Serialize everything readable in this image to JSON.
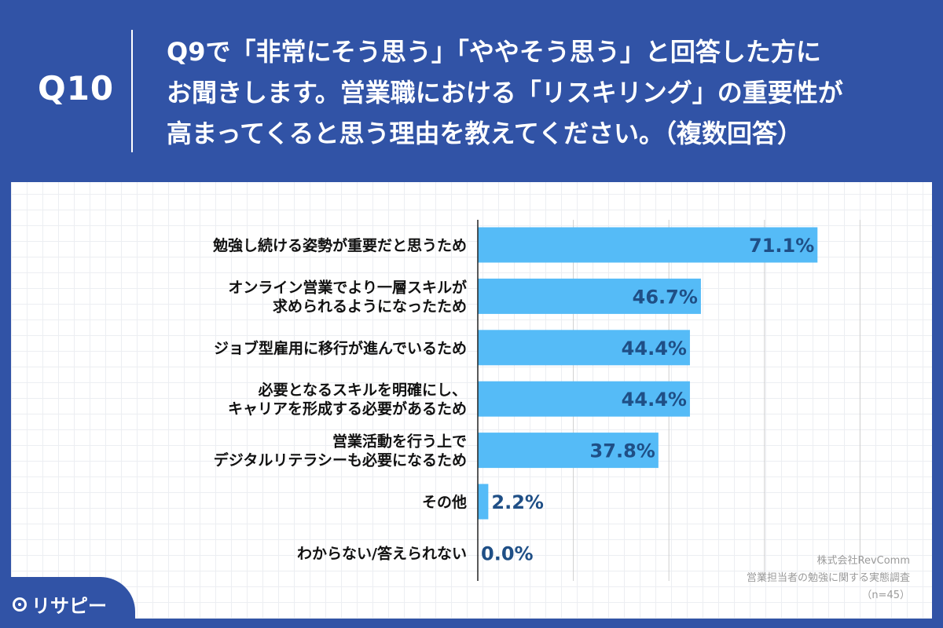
{
  "header": {
    "question_number": "Q10",
    "question_lines": [
      "Q9で「非常にそう思う」「ややそう思う」と回答した方に",
      "お聞きします。営業職における「リスキリング」の重要性が",
      "高まってくると思う理由を教えてください。（複数回答）"
    ]
  },
  "chart_data": {
    "type": "bar",
    "orientation": "horizontal",
    "title": "",
    "categories": [
      [
        "勉強し続ける姿勢が重要だと思うため"
      ],
      [
        "オンライン営業でより一層スキルが",
        "求められるようになったため"
      ],
      [
        "ジョブ型雇用に移行が進んでいるため"
      ],
      [
        "必要となるスキルを明確にし、",
        "キャリアを形成する必要があるため"
      ],
      [
        "営業活動を行う上で",
        "デジタルリテラシーも必要になるため"
      ],
      [
        "その他"
      ],
      [
        "わからない/答えられない"
      ]
    ],
    "values": [
      71.1,
      46.7,
      44.4,
      44.4,
      37.8,
      2.2,
      0.0
    ],
    "value_labels": [
      "71.1%",
      "46.7%",
      "44.4%",
      "44.4%",
      "37.8%",
      "2.2%",
      "0.0%"
    ],
    "xlim": [
      0,
      80
    ],
    "gridline_step": 20,
    "bar_color": "#55bbf7",
    "label_color": "#1f4f86"
  },
  "source": {
    "company": "株式会社RevComm",
    "survey": "営業担当者の勉強に関する実態調査",
    "sample": "（n=45）"
  },
  "brand": {
    "logo_text": "リサピー"
  },
  "colors": {
    "background": "#3153a6",
    "panel": "#ffffff"
  }
}
